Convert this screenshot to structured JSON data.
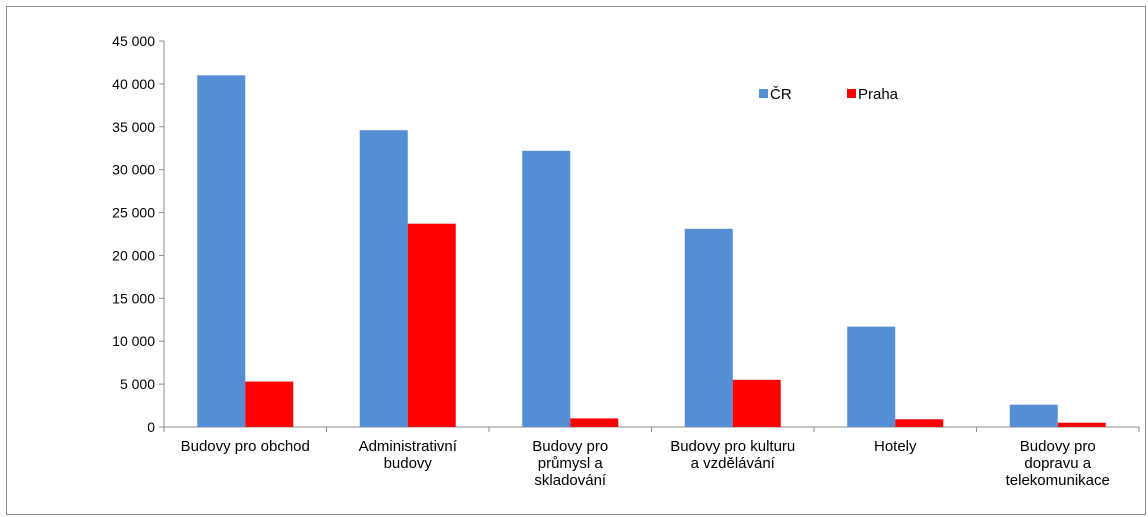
{
  "chart_data": {
    "type": "bar",
    "title": "",
    "xlabel": "",
    "ylabel": "",
    "ylim": [
      0,
      45000
    ],
    "y_ticks": [
      0,
      5000,
      10000,
      15000,
      20000,
      25000,
      30000,
      35000,
      40000,
      45000
    ],
    "y_tick_labels": [
      "0",
      "5 000",
      "10 000",
      "15 000",
      "20 000",
      "25 000",
      "30 000",
      "35 000",
      "40 000",
      "45 000"
    ],
    "grid": false,
    "legend_position": "top-right",
    "categories": [
      [
        "Budovy pro obchod"
      ],
      [
        "Administrativní",
        "budovy"
      ],
      [
        "Budovy pro",
        "průmysl a",
        "skladování"
      ],
      [
        "Budovy pro kulturu",
        "a vzdělávání"
      ],
      [
        "Hotely"
      ],
      [
        "Budovy pro",
        "dopravu a",
        "telekomunikace"
      ]
    ],
    "series": [
      {
        "name": "ČR",
        "color": "#558ED5",
        "values": [
          41000,
          34600,
          32200,
          23100,
          11700,
          2600
        ]
      },
      {
        "name": "Praha",
        "color": "#FF0000",
        "values": [
          5300,
          23700,
          1000,
          5500,
          900,
          500
        ]
      }
    ]
  }
}
